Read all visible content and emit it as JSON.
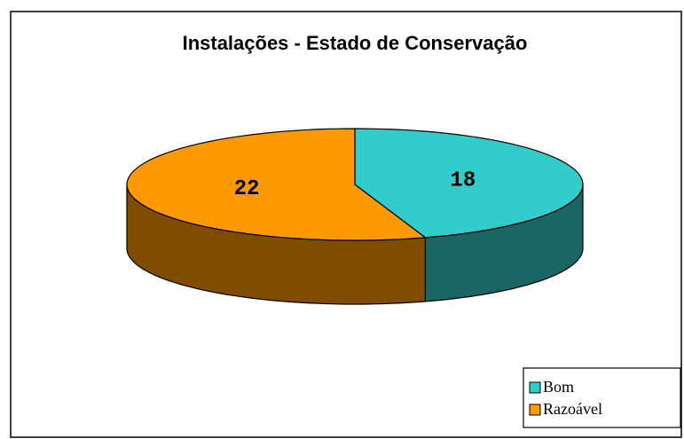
{
  "chart_data": {
    "type": "pie3d",
    "title": "Instalações - Estado de Conservação",
    "categories": [
      "Bom",
      "Razoável"
    ],
    "values": [
      18,
      22
    ],
    "colors": [
      "#33cccc",
      "#ff9900"
    ],
    "legend": "bottom-right"
  }
}
